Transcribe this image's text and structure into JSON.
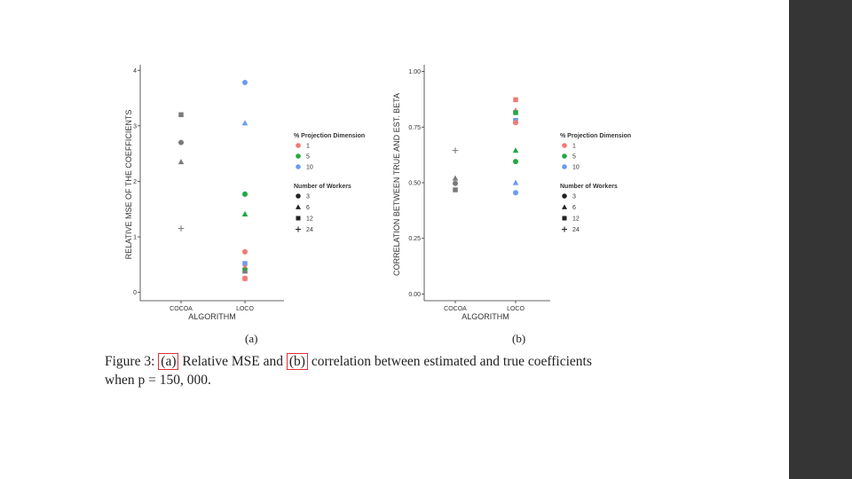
{
  "chart_data": [
    {
      "type": "scatter",
      "panel_label": "(a)",
      "xlabel": "ALGORITHM",
      "ylabel": "RELATIVE MSE OF THE COEFFICIENTS",
      "categories": [
        "COCOA",
        "LOCO"
      ],
      "ylim": [
        -0.15,
        4.1
      ],
      "yticks": [
        0,
        1,
        2,
        3,
        4
      ],
      "ytick_labels": [
        "0",
        "1",
        "2",
        "3",
        "4"
      ],
      "grid": false,
      "points": [
        {
          "x": "COCOA",
          "y": 3.2,
          "color": "gray",
          "shape": "square"
        },
        {
          "x": "COCOA",
          "y": 2.7,
          "color": "gray",
          "shape": "circle"
        },
        {
          "x": "COCOA",
          "y": 2.35,
          "color": "gray",
          "shape": "triangle"
        },
        {
          "x": "COCOA",
          "y": 1.15,
          "color": "gray",
          "shape": "plus"
        },
        {
          "x": "LOCO",
          "y": 3.78,
          "color": "blue",
          "shape": "circle"
        },
        {
          "x": "LOCO",
          "y": 3.05,
          "color": "blue",
          "shape": "triangle"
        },
        {
          "x": "LOCO",
          "y": 1.77,
          "color": "green",
          "shape": "circle"
        },
        {
          "x": "LOCO",
          "y": 1.41,
          "color": "green",
          "shape": "triangle"
        },
        {
          "x": "LOCO",
          "y": 0.73,
          "color": "red",
          "shape": "circle"
        },
        {
          "x": "LOCO",
          "y": 0.52,
          "color": "blue",
          "shape": "square"
        },
        {
          "x": "LOCO",
          "y": 0.46,
          "color": "red",
          "shape": "triangle"
        },
        {
          "x": "LOCO",
          "y": 0.4,
          "color": "green",
          "shape": "square"
        },
        {
          "x": "LOCO",
          "y": 0.38,
          "color": "gray",
          "shape": "triangle"
        },
        {
          "x": "LOCO",
          "y": 0.25,
          "color": "red",
          "shape": "square"
        },
        {
          "x": "LOCO",
          "y": 0.25,
          "color": "red",
          "shape": "plus"
        }
      ]
    },
    {
      "type": "scatter",
      "panel_label": "(b)",
      "xlabel": "ALGORITHM",
      "ylabel": "CORRELATION BETWEEN TRUE AND EST. BETA",
      "categories": [
        "COCOA",
        "LOCO"
      ],
      "ylim": [
        -0.03,
        1.03
      ],
      "yticks": [
        0,
        0.25,
        0.5,
        0.75,
        1
      ],
      "ytick_labels": [
        "0.00",
        "0.25",
        "0.50",
        "0.75",
        "1.00"
      ],
      "grid": false,
      "points": [
        {
          "x": "COCOA",
          "y": 0.645,
          "color": "gray",
          "shape": "plus"
        },
        {
          "x": "COCOA",
          "y": 0.52,
          "color": "gray",
          "shape": "triangle"
        },
        {
          "x": "COCOA",
          "y": 0.497,
          "color": "gray",
          "shape": "circle"
        },
        {
          "x": "COCOA",
          "y": 0.468,
          "color": "gray",
          "shape": "square"
        },
        {
          "x": "LOCO",
          "y": 0.873,
          "color": "red",
          "shape": "square"
        },
        {
          "x": "LOCO",
          "y": 0.825,
          "color": "red",
          "shape": "triangle"
        },
        {
          "x": "LOCO",
          "y": 0.815,
          "color": "green",
          "shape": "square"
        },
        {
          "x": "LOCO",
          "y": 0.78,
          "color": "blue",
          "shape": "square"
        },
        {
          "x": "LOCO",
          "y": 0.77,
          "color": "red",
          "shape": "circle"
        },
        {
          "x": "LOCO",
          "y": 0.645,
          "color": "green",
          "shape": "triangle"
        },
        {
          "x": "LOCO",
          "y": 0.595,
          "color": "green",
          "shape": "circle"
        },
        {
          "x": "LOCO",
          "y": 0.5,
          "color": "blue",
          "shape": "triangle"
        },
        {
          "x": "LOCO",
          "y": 0.455,
          "color": "blue",
          "shape": "circle"
        }
      ]
    }
  ],
  "legend": {
    "color_title": "% Projection Dimension",
    "color_entries": [
      {
        "label": "1",
        "color": "red"
      },
      {
        "label": "5",
        "color": "green"
      },
      {
        "label": "10",
        "color": "blue"
      }
    ],
    "shape_title": "Number of Workers",
    "shape_entries": [
      {
        "label": "3",
        "shape": "circle"
      },
      {
        "label": "6",
        "shape": "triangle"
      },
      {
        "label": "12",
        "shape": "square"
      },
      {
        "label": "24",
        "shape": "plus"
      }
    ]
  },
  "colors": {
    "red": "#f07a73",
    "green": "#22a845",
    "blue": "#6a9cf2",
    "gray": "#7a7a7a",
    "legend_symbol": "#222222",
    "right_bar": "#353535",
    "ref_box": "#e0303a"
  },
  "caption": {
    "prefix": "Figure 3: ",
    "ref_a": "(a)",
    "middle": " Relative MSE and ",
    "ref_b": "(b)",
    "rest_line1": " correlation between estimated and true coefficients",
    "line2": "when p = 150, 000."
  }
}
